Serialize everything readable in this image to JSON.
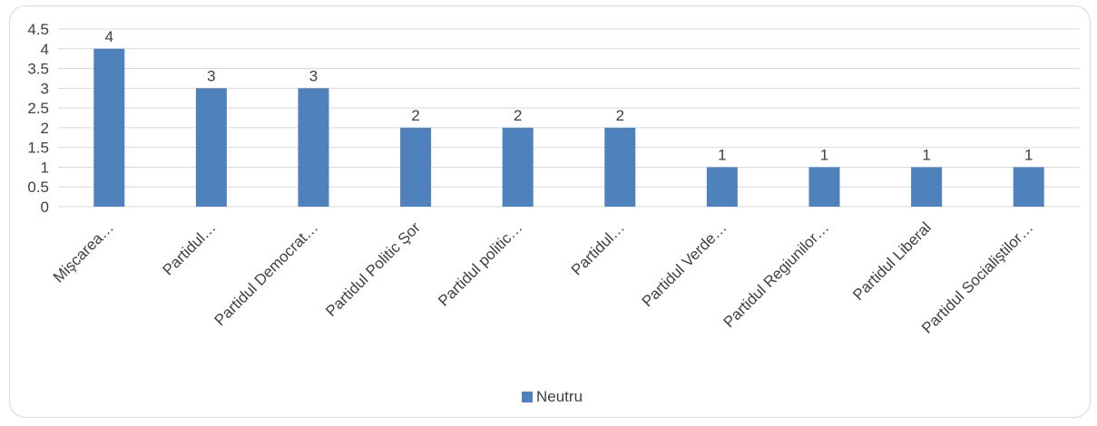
{
  "chart_data": {
    "type": "bar",
    "title": "",
    "xlabel": "",
    "ylabel": "",
    "ylim": [
      0,
      4.5
    ],
    "yticks": [
      "0",
      "0.5",
      "1",
      "1.5",
      "2",
      "2.5",
      "3",
      "3.5",
      "4",
      "4.5"
    ],
    "grid": true,
    "legend_position": "bottom",
    "categories": [
      "Mişcarea…",
      "Partidul…",
      "Partidul Democrat…",
      "Partidul Politic Şor",
      "Partidul politic…",
      "Partidul…",
      "Partidul Verde…",
      "Partidul Regiunilor…",
      "Partidul Liberal",
      "Partidul Socialiştilor…"
    ],
    "series": [
      {
        "name": "Neutru",
        "color": "#4f81bd",
        "values": [
          4,
          3,
          3,
          2,
          2,
          2,
          1,
          1,
          1,
          1
        ]
      }
    ]
  }
}
